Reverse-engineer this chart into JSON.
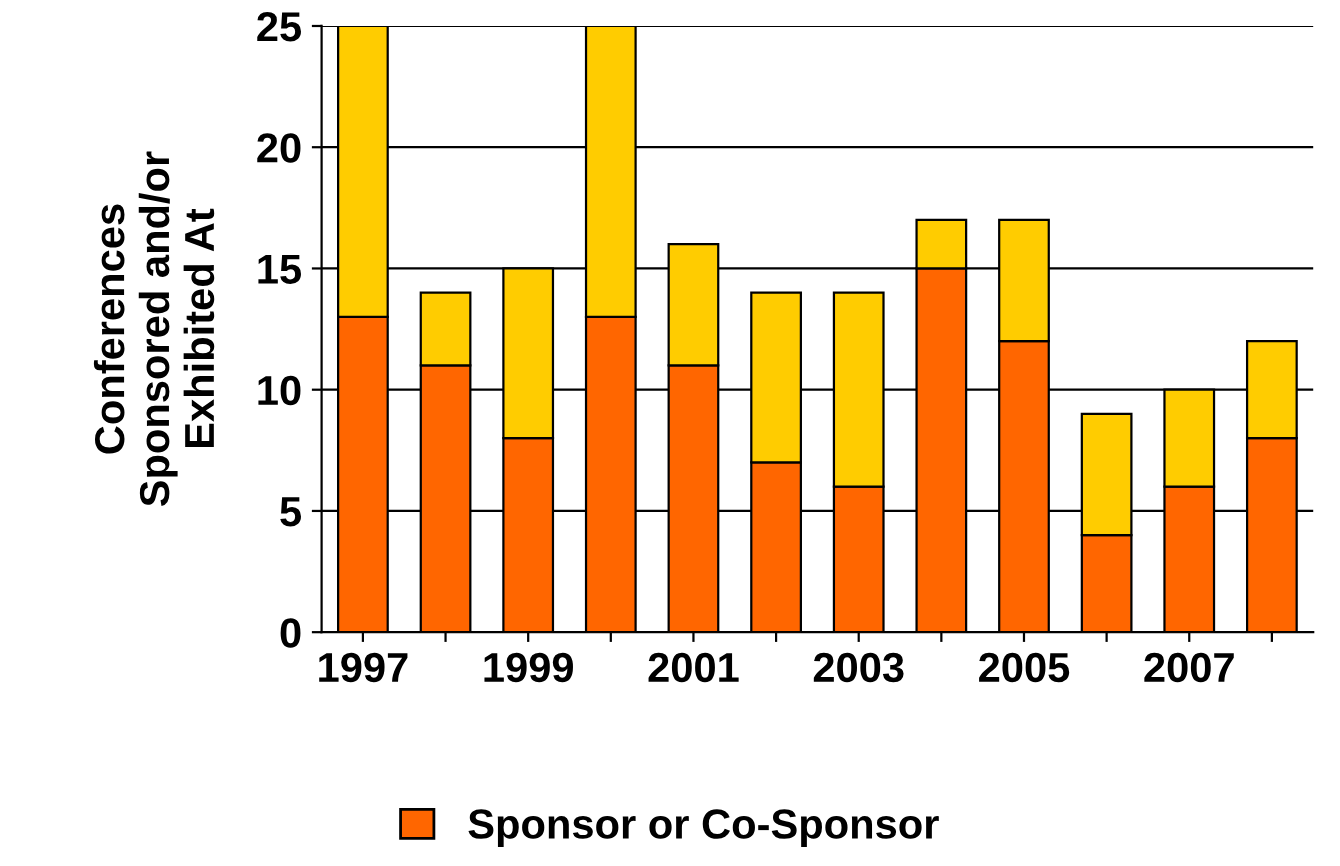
{
  "chart_data": {
    "type": "bar",
    "stacked": true,
    "ylabel": "Conferences\nSponsored and/or\nExhibited At",
    "categories": [
      "1997",
      null,
      "1999",
      null,
      "2001",
      null,
      "2003",
      null,
      "2005",
      null,
      "2007",
      null
    ],
    "series": [
      {
        "name": "Sponsor or Co-Sponsor",
        "color": "#ff6600",
        "values": [
          13,
          11,
          8,
          13,
          11,
          7,
          6,
          15,
          12,
          4,
          6,
          8
        ]
      },
      {
        "color": "#ffcc00",
        "values": [
          12,
          3,
          7,
          12,
          5,
          7,
          8,
          2,
          5,
          5,
          4,
          4
        ]
      }
    ],
    "ylim": [
      0,
      25
    ],
    "yticks": [
      0,
      5,
      10,
      15,
      20,
      25
    ],
    "grid": "y",
    "legend": "bottom"
  }
}
